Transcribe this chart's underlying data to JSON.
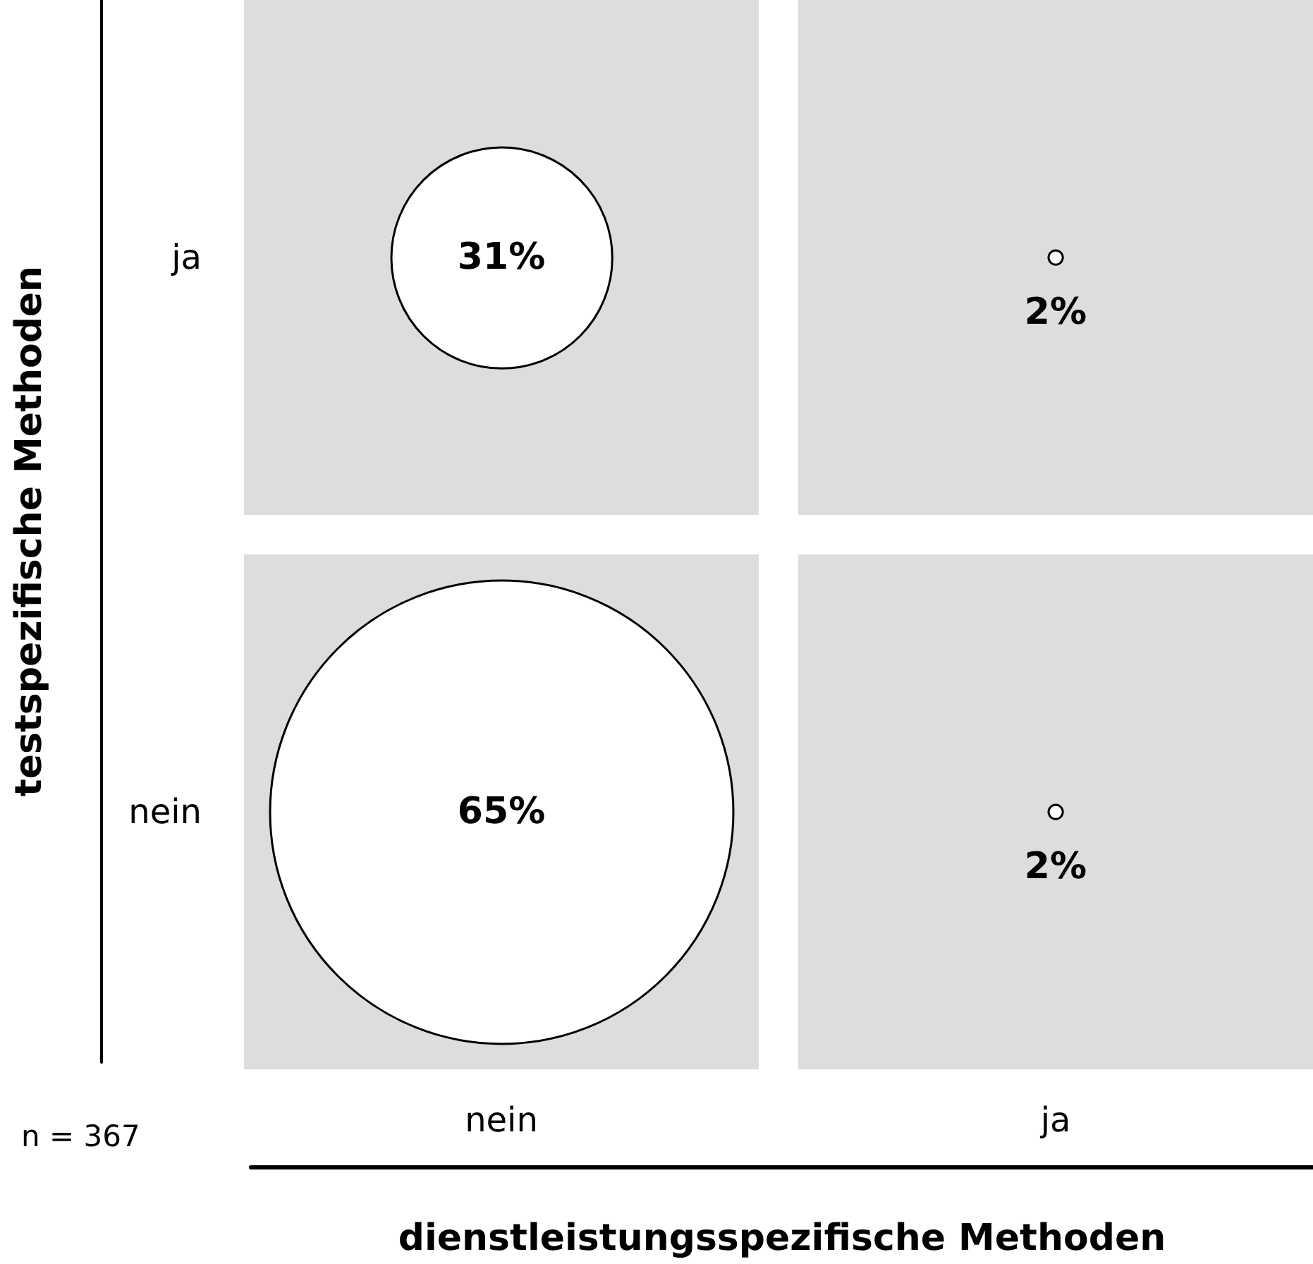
{
  "chart_data": {
    "type": "heatmap",
    "xlabel": "dienstleistungsspezifische Methoden",
    "ylabel": "testspezifische Methoden",
    "categories": [
      "nein",
      "ja"
    ],
    "y_categories": [
      "ja",
      "nein"
    ],
    "cells": [
      [
        31,
        2
      ],
      [
        65,
        2
      ]
    ],
    "cell_labels": [
      [
        "31%",
        "2%"
      ],
      [
        "65%",
        "2%"
      ]
    ],
    "annotations": [
      "n = 367"
    ]
  }
}
